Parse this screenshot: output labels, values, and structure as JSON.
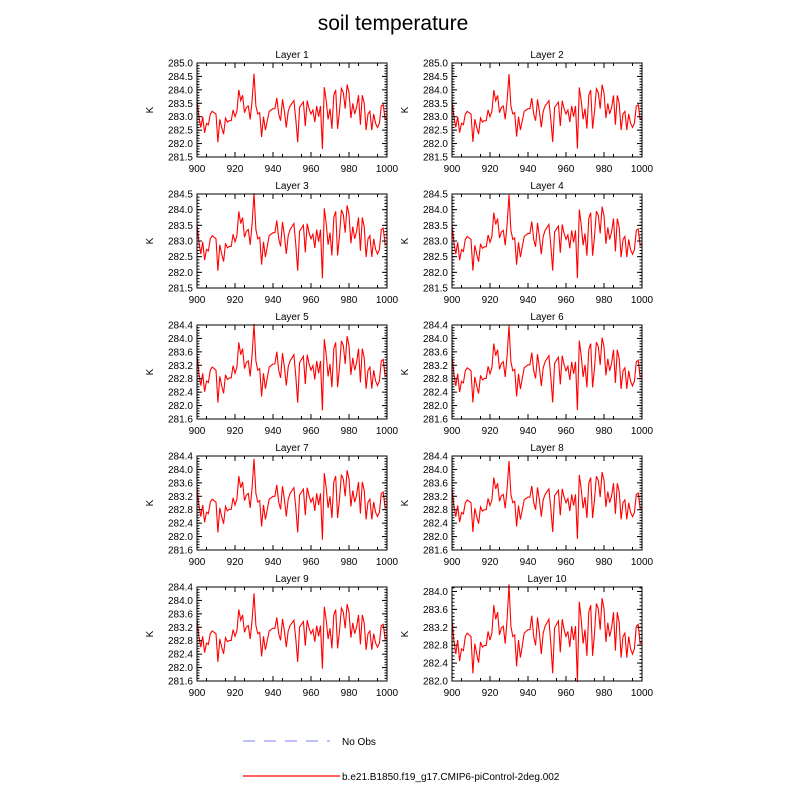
{
  "chart_data": {
    "type": "line",
    "title": "soil temperature",
    "xlabel": "",
    "ylabel": "K",
    "xlim": [
      900,
      1000
    ],
    "xticks": [
      900,
      920,
      940,
      960,
      980,
      1000
    ],
    "grid": false,
    "legend_placement": "bottom",
    "legend": [
      {
        "label": "No Obs",
        "color": "#9999ff",
        "style": "dashed"
      },
      {
        "label": "b.e21.B1850.f19_g17.CMIP6-piControl-2deg.002",
        "color": "#ff0000",
        "style": "solid"
      }
    ],
    "x_start": 900,
    "base_values": [
      283.6,
      283.0,
      282.6,
      283.0,
      282.4,
      282.75,
      282.7,
      283.1,
      283.2,
      283.15,
      283.1,
      282.05,
      282.9,
      282.6,
      282.35,
      282.95,
      282.8,
      282.85,
      282.85,
      283.25,
      283.0,
      283.2,
      284.0,
      283.6,
      283.8,
      283.15,
      283.35,
      283.4,
      282.9,
      283.6,
      284.6,
      283.4,
      283.1,
      283.15,
      282.25,
      283.0,
      282.5,
      282.85,
      283.2,
      283.25,
      283.3,
      283.3,
      283.7,
      283.1,
      282.85,
      283.65,
      283.2,
      282.6,
      283.2,
      283.4,
      283.5,
      283.6,
      282.9,
      282.05,
      283.35,
      283.45,
      283.55,
      282.65,
      283.6,
      283.3,
      283.1,
      283.25,
      282.8,
      283.4,
      283.0,
      283.4,
      281.8,
      284.1,
      283.6,
      282.9,
      283.3,
      282.55,
      283.8,
      284.0,
      282.55,
      283.2,
      284.05,
      283.9,
      283.3,
      284.2,
      283.9,
      282.95,
      283.5,
      283.1,
      283.35,
      283.8,
      282.7,
      283.8,
      283.5,
      282.5,
      283.1,
      283.2,
      282.5,
      283.1,
      282.75,
      282.6,
      282.75,
      283.4,
      283.45,
      282.9,
      282.95
    ],
    "base_mean": 283.15,
    "panels": [
      {
        "title": "Layer 1",
        "mean": 283.15,
        "scale": 1.0,
        "ylim": [
          281.5,
          285.0
        ],
        "yticks": [
          "281.5",
          "282.0",
          "282.5",
          "283.0",
          "283.5",
          "284.0",
          "284.5",
          "285.0"
        ]
      },
      {
        "title": "Layer 2",
        "mean": 283.15,
        "scale": 0.99,
        "ylim": [
          281.5,
          285.0
        ],
        "yticks": [
          "281.5",
          "282.0",
          "282.5",
          "283.0",
          "283.5",
          "284.0",
          "284.5",
          "285.0"
        ]
      },
      {
        "title": "Layer 3",
        "mean": 283.12,
        "scale": 0.97,
        "ylim": [
          281.5,
          284.5
        ],
        "yticks": [
          "281.5",
          "282.0",
          "282.5",
          "283.0",
          "283.5",
          "284.0",
          "284.5"
        ]
      },
      {
        "title": "Layer 4",
        "mean": 283.1,
        "scale": 0.95,
        "ylim": [
          281.5,
          284.5
        ],
        "yticks": [
          "281.5",
          "282.0",
          "282.5",
          "283.0",
          "283.5",
          "284.0",
          "284.5"
        ]
      },
      {
        "title": "Layer 5",
        "mean": 283.1,
        "scale": 0.92,
        "ylim": [
          281.6,
          284.4
        ],
        "yticks": [
          "281.6",
          "282.0",
          "282.4",
          "282.8",
          "283.2",
          "283.6",
          "284.0",
          "284.4"
        ]
      },
      {
        "title": "Layer 6",
        "mean": 283.08,
        "scale": 0.9,
        "ylim": [
          281.6,
          284.4
        ],
        "yticks": [
          "281.6",
          "282.0",
          "282.4",
          "282.8",
          "283.2",
          "283.6",
          "284.0",
          "284.4"
        ]
      },
      {
        "title": "Layer 7",
        "mean": 283.07,
        "scale": 0.86,
        "ylim": [
          281.6,
          284.4
        ],
        "yticks": [
          "281.6",
          "282.0",
          "282.4",
          "282.8",
          "283.2",
          "283.6",
          "284.0",
          "284.4"
        ]
      },
      {
        "title": "Layer 8",
        "mean": 283.05,
        "scale": 0.83,
        "ylim": [
          281.6,
          284.4
        ],
        "yticks": [
          "281.6",
          "282.0",
          "282.4",
          "282.8",
          "283.2",
          "283.6",
          "284.0",
          "284.4"
        ]
      },
      {
        "title": "Layer 9",
        "mean": 283.05,
        "scale": 0.8,
        "ylim": [
          281.6,
          284.4
        ],
        "yticks": [
          "281.6",
          "282.0",
          "282.4",
          "282.8",
          "283.2",
          "283.6",
          "284.0",
          "284.4"
        ]
      },
      {
        "title": "Layer 10",
        "mean": 283.03,
        "scale": 0.78,
        "ylim": [
          282.0,
          284.1
        ],
        "yticks": [
          "282.0",
          "282.4",
          "282.8",
          "283.2",
          "283.6",
          "284.0"
        ]
      }
    ]
  }
}
